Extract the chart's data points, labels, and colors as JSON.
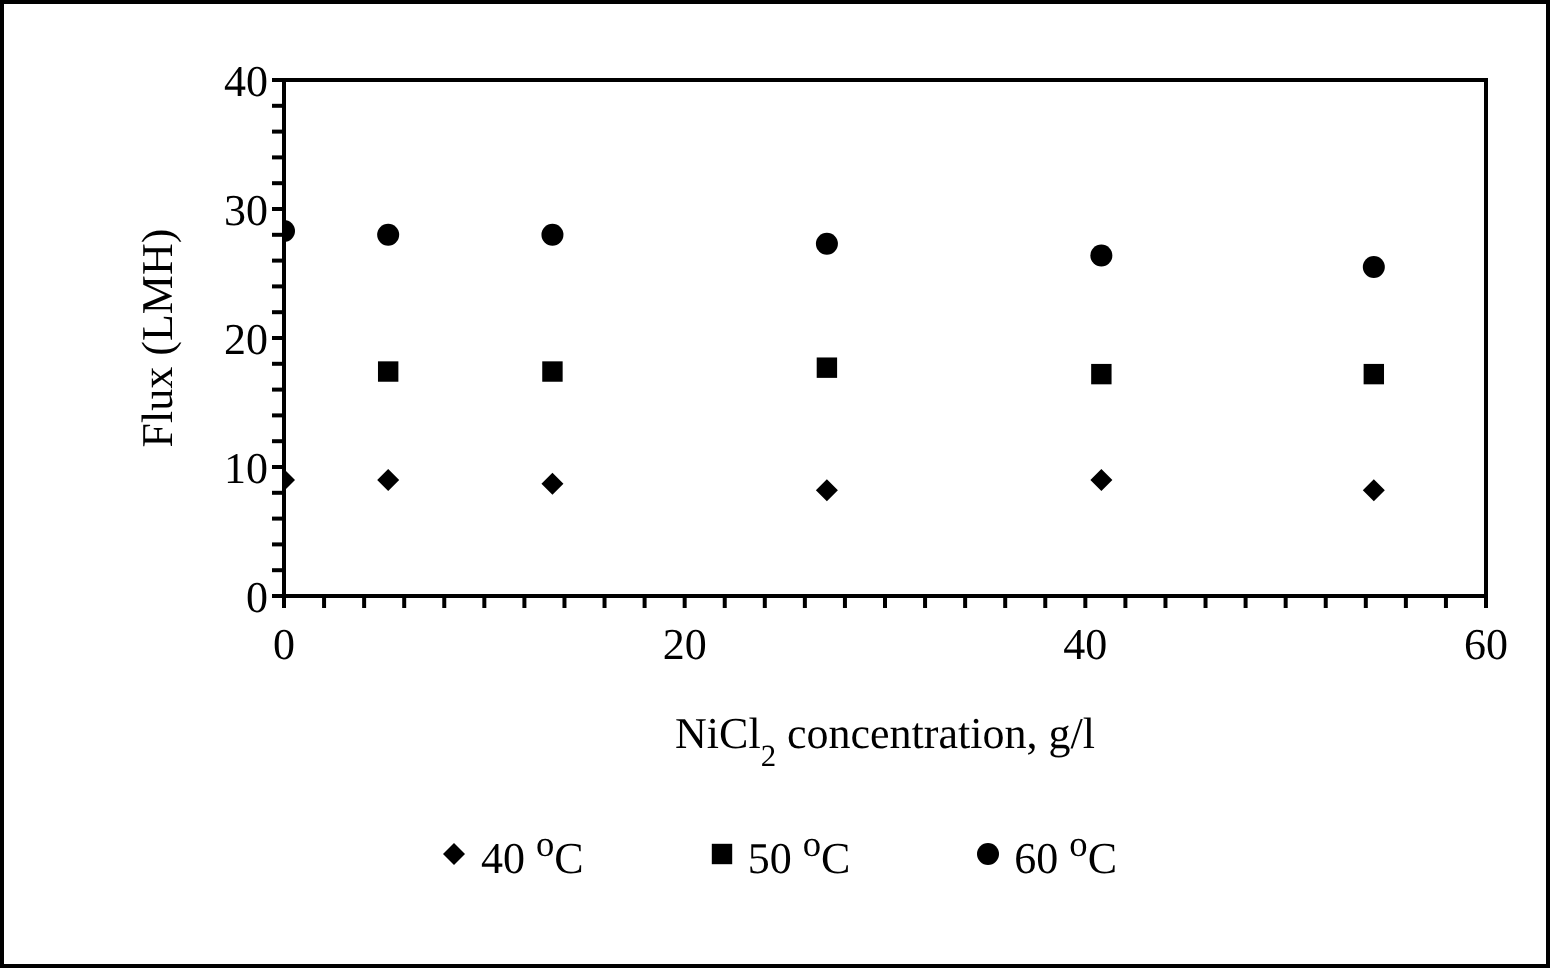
{
  "chart_data": {
    "type": "scatter",
    "xlabel": "NiCl$_{2}$ concentration,  g/l",
    "ylabel": "Flux (LMH)",
    "xlim": [
      0,
      60
    ],
    "ylim": [
      0,
      40
    ],
    "xticks": [
      0,
      {
        "value": 2,
        "label": null
      },
      {
        "value": 4,
        "label": null
      },
      {
        "value": 6,
        "label": null
      },
      {
        "value": 8,
        "label": null
      },
      {
        "value": 10,
        "label": null
      },
      {
        "value": 12,
        "label": null
      },
      {
        "value": 14,
        "label": null
      },
      {
        "value": 16,
        "label": null
      },
      {
        "value": 18,
        "label": null
      },
      20,
      {
        "value": 22,
        "label": null
      },
      {
        "value": 24,
        "label": null
      },
      {
        "value": 26,
        "label": null
      },
      {
        "value": 28,
        "label": null
      },
      {
        "value": 30,
        "label": null
      },
      {
        "value": 32,
        "label": null
      },
      {
        "value": 34,
        "label": null
      },
      {
        "value": 36,
        "label": null
      },
      {
        "value": 38,
        "label": null
      },
      40,
      {
        "value": 42,
        "label": null
      },
      {
        "value": 44,
        "label": null
      },
      {
        "value": 46,
        "label": null
      },
      {
        "value": 48,
        "label": null
      },
      {
        "value": 50,
        "label": null
      },
      {
        "value": 52,
        "label": null
      },
      {
        "value": 54,
        "label": null
      },
      {
        "value": 56,
        "label": null
      },
      {
        "value": 58,
        "label": null
      },
      60
    ],
    "yticks": [
      0,
      {
        "value": 2,
        "label": null
      },
      {
        "value": 4,
        "label": null
      },
      {
        "value": 6,
        "label": null
      },
      {
        "value": 8,
        "label": null
      },
      10,
      {
        "value": 12,
        "label": null
      },
      {
        "value": 14,
        "label": null
      },
      {
        "value": 16,
        "label": null
      },
      {
        "value": 18,
        "label": null
      },
      20,
      {
        "value": 22,
        "label": null
      },
      {
        "value": 24,
        "label": null
      },
      {
        "value": 26,
        "label": null
      },
      {
        "value": 28,
        "label": null
      },
      30,
      {
        "value": 32,
        "label": null
      },
      {
        "value": 34,
        "label": null
      },
      {
        "value": 36,
        "label": null
      },
      {
        "value": 38,
        "label": null
      },
      40
    ],
    "grid": false,
    "legend": "bottom",
    "series": [
      {
        "name": "40 $^{o}$C",
        "color": "#000000",
        "marker": "diamond",
        "x": [
          0,
          5.2,
          13.4,
          27.1,
          40.8,
          54.4
        ],
        "values": [
          9.0,
          9.0,
          8.7,
          8.2,
          9.0,
          8.2
        ]
      },
      {
        "name": "50 $^{o}$C",
        "color": "#000000",
        "marker": "square",
        "x": [
          5.2,
          13.4,
          27.1,
          40.8,
          54.4
        ],
        "values": [
          17.4,
          17.4,
          17.7,
          17.2,
          17.2
        ]
      },
      {
        "name": "60 $^{o}$C",
        "color": "#000000",
        "marker": "circle",
        "x": [
          0,
          5.2,
          13.4,
          27.1,
          40.8,
          54.4
        ],
        "values": [
          28.3,
          28.0,
          28.0,
          27.3,
          26.4,
          25.5
        ]
      }
    ]
  }
}
